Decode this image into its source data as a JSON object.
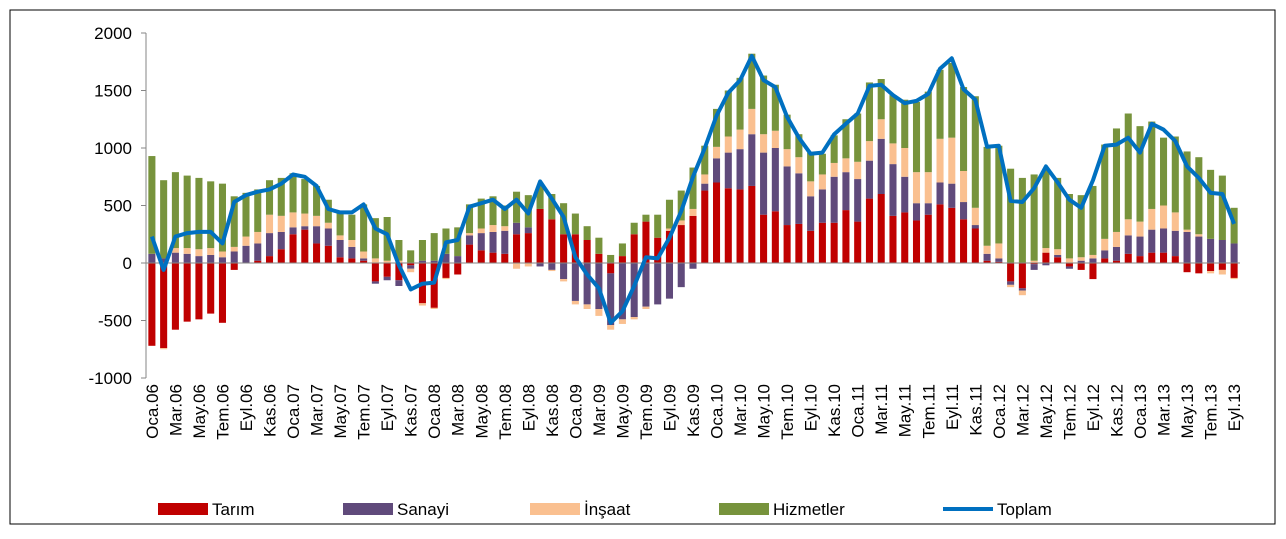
{
  "chart_data": {
    "type": "bar",
    "stacked": true,
    "grid": false,
    "legend": "bottom",
    "categories": [
      "Oca.06",
      null,
      "Mar.06",
      null,
      "May.06",
      null,
      "Tem.06",
      null,
      "Eyl.06",
      null,
      "Kas.06",
      null,
      "Oca.07",
      null,
      "Mar.07",
      null,
      "May.07",
      null,
      "Tem.07",
      null,
      "Eyl.07",
      null,
      "Kas.07",
      null,
      "Oca.08",
      null,
      "Mar.08",
      null,
      "May.08",
      null,
      "Tem.08",
      null,
      "Eyl.08",
      null,
      "Kas.08",
      null,
      "Oca.09",
      null,
      "Mar.09",
      null,
      "May.09",
      null,
      "Tem.09",
      null,
      "Eyl.09",
      null,
      "Kas.09",
      null,
      "Oca.10",
      null,
      "Mar.10",
      null,
      "May.10",
      null,
      "Tem.10",
      null,
      "Eyl.10",
      null,
      "Kas.10",
      null,
      "Oca.11",
      null,
      "Mar.11",
      null,
      "May.11",
      null,
      "Tem.11",
      null,
      "Eyl.11",
      null,
      "Kas.11",
      null,
      "Oca.12",
      null,
      "Mar.12",
      null,
      "May.12",
      null,
      "Tem.12",
      null,
      "Eyl.12",
      null,
      "Kas.12",
      null,
      "Oca.13",
      null,
      "Mar.13",
      null,
      "May.13",
      null,
      "Tem.13",
      null,
      "Eyl.13"
    ],
    "series": [
      {
        "name": "Tarım",
        "color": "#c00000",
        "type": "bar",
        "values": [
          -720,
          -740,
          -580,
          -510,
          -490,
          -440,
          -520,
          -60,
          0,
          20,
          60,
          120,
          250,
          290,
          170,
          150,
          50,
          40,
          20,
          -160,
          -120,
          -150,
          -20,
          -350,
          -390,
          -130,
          -100,
          160,
          110,
          90,
          80,
          250,
          260,
          470,
          380,
          250,
          250,
          200,
          80,
          -90,
          60,
          250,
          360,
          220,
          280,
          330,
          410,
          630,
          700,
          650,
          640,
          670,
          420,
          450,
          330,
          340,
          280,
          350,
          350,
          460,
          360,
          560,
          600,
          410,
          440,
          370,
          420,
          510,
          480,
          380,
          300,
          20,
          10,
          -160,
          -220,
          -10,
          90,
          50,
          -30,
          -60,
          -140,
          40,
          20,
          80,
          60,
          90,
          90,
          60,
          -80,
          -90,
          -70,
          -60,
          -130
        ]
      },
      {
        "name": "Sanayi",
        "color": "#604a7b",
        "type": "bar",
        "values": [
          80,
          40,
          90,
          80,
          60,
          70,
          50,
          100,
          150,
          150,
          200,
          150,
          60,
          30,
          150,
          150,
          150,
          100,
          20,
          -20,
          -30,
          -50,
          -30,
          20,
          20,
          80,
          60,
          80,
          150,
          180,
          200,
          100,
          50,
          -30,
          -60,
          -140,
          -330,
          -360,
          -400,
          -450,
          -490,
          -470,
          -380,
          -360,
          -310,
          -210,
          -50,
          60,
          210,
          310,
          350,
          450,
          540,
          550,
          510,
          440,
          300,
          290,
          400,
          330,
          370,
          330,
          480,
          450,
          310,
          150,
          100,
          190,
          210,
          150,
          30,
          60,
          30,
          -30,
          -20,
          -50,
          -20,
          20,
          -20,
          20,
          40,
          70,
          120,
          160,
          170,
          200,
          210,
          220,
          270,
          230,
          210,
          200,
          170
        ]
      },
      {
        "name": "İnşaat",
        "color": "#fac090",
        "type": "bar",
        "values": [
          0,
          -10,
          40,
          50,
          60,
          60,
          50,
          40,
          80,
          100,
          160,
          140,
          130,
          110,
          90,
          50,
          40,
          60,
          60,
          40,
          20,
          20,
          -30,
          -20,
          -10,
          -10,
          0,
          20,
          40,
          60,
          40,
          -50,
          -30,
          0,
          -10,
          -20,
          -30,
          -40,
          -60,
          -40,
          -40,
          -20,
          -20,
          0,
          20,
          40,
          60,
          80,
          100,
          140,
          170,
          220,
          160,
          150,
          150,
          140,
          130,
          130,
          120,
          120,
          150,
          170,
          170,
          180,
          250,
          270,
          270,
          380,
          400,
          270,
          150,
          70,
          130,
          -20,
          -40,
          20,
          40,
          50,
          40,
          30,
          30,
          100,
          130,
          140,
          130,
          180,
          200,
          160,
          20,
          20,
          -20,
          -40,
          -10
        ]
      },
      {
        "name": "Hizmetler",
        "color": "#77933c",
        "type": "bar",
        "values": [
          850,
          680,
          660,
          630,
          620,
          580,
          590,
          440,
          380,
          370,
          300,
          330,
          340,
          300,
          260,
          200,
          210,
          220,
          410,
          350,
          380,
          180,
          110,
          180,
          240,
          220,
          250,
          250,
          260,
          250,
          180,
          270,
          280,
          200,
          220,
          270,
          180,
          120,
          140,
          70,
          110,
          100,
          60,
          200,
          250,
          260,
          360,
          250,
          330,
          400,
          450,
          480,
          510,
          400,
          300,
          200,
          250,
          180,
          240,
          340,
          420,
          510,
          350,
          420,
          420,
          610,
          700,
          600,
          650,
          730,
          970,
          860,
          850,
          820,
          740,
          750,
          690,
          620,
          560,
          540,
          600,
          820,
          900,
          920,
          830,
          760,
          590,
          660,
          680,
          670,
          600,
          560,
          310
        ]
      },
      {
        "name": "Toplam",
        "color": "#0070c0",
        "type": "line",
        "values": [
          230,
          -60,
          230,
          260,
          270,
          270,
          170,
          530,
          590,
          620,
          640,
          690,
          770,
          750,
          670,
          470,
          440,
          440,
          510,
          300,
          250,
          -20,
          -230,
          -180,
          -170,
          180,
          200,
          490,
          520,
          550,
          470,
          550,
          430,
          710,
          560,
          400,
          50,
          -100,
          -220,
          -520,
          -420,
          -200,
          50,
          40,
          220,
          450,
          750,
          1000,
          1280,
          1480,
          1590,
          1800,
          1590,
          1530,
          1270,
          1090,
          950,
          960,
          1120,
          1210,
          1300,
          1540,
          1550,
          1460,
          1390,
          1410,
          1470,
          1690,
          1780,
          1510,
          1420,
          1010,
          1020,
          540,
          530,
          650,
          840,
          700,
          550,
          480,
          720,
          1020,
          1030,
          1090,
          960,
          1210,
          1160,
          1060,
          840,
          740,
          610,
          600,
          340
        ]
      }
    ],
    "ylim": [
      -1000,
      2000
    ],
    "yticks": [
      -1000,
      -500,
      0,
      500,
      1000,
      1500,
      2000
    ]
  }
}
